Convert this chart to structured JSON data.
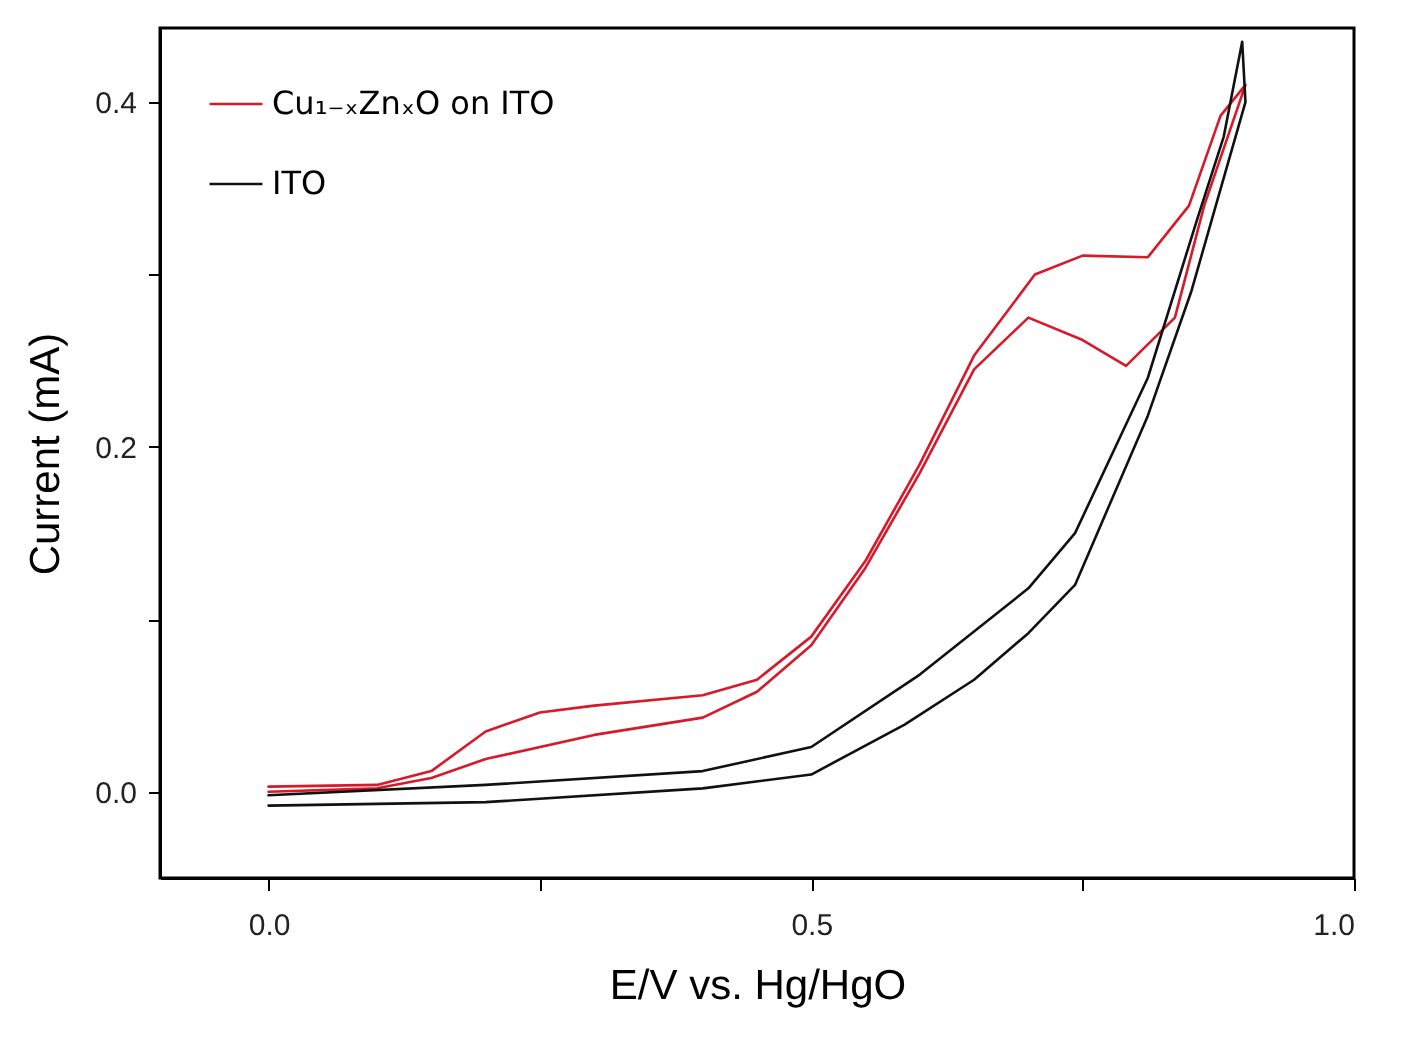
{
  "chart_data": {
    "type": "line",
    "xlabel": "E/V vs. Hg/HgO",
    "ylabel": "Current (mA)",
    "xlim": [
      -0.1,
      1.0
    ],
    "ylim": [
      -0.05,
      0.443
    ],
    "xticks": [
      {
        "value": 0,
        "label": "0.0"
      },
      {
        "value": 0.25,
        "label": null
      },
      {
        "value": 0.5,
        "label": "0.5"
      },
      {
        "value": 0.75,
        "label": null
      },
      {
        "value": 1.0,
        "label": "1.0"
      }
    ],
    "yticks": [
      {
        "value": 0,
        "label": "0.0"
      },
      {
        "value": 0.1,
        "label": null
      },
      {
        "value": 0.2,
        "label": "0.2"
      },
      {
        "value": 0.3,
        "label": null
      },
      {
        "value": 0.4,
        "label": "0.4"
      }
    ],
    "grid": false,
    "legend": "top left",
    "line_style": "solid",
    "series": [
      {
        "name": "Cu₁₋ₓZnₓO on ITO",
        "color": "#d7192a",
        "x": [
          0,
          0.1,
          0.15,
          0.2,
          0.3,
          0.4,
          0.45,
          0.5,
          0.55,
          0.6,
          0.65,
          0.7,
          0.75,
          0.79,
          0.835,
          0.862,
          0.9,
          0.877,
          0.848,
          0.81,
          0.75,
          0.706,
          0.65,
          0.6,
          0.55,
          0.5,
          0.45,
          0.4,
          0.3,
          0.25,
          0.2,
          0.15,
          0.1,
          0
        ],
        "values": [
          0.0,
          0.002,
          0.008,
          0.019,
          0.033,
          0.043,
          0.058,
          0.085,
          0.13,
          0.185,
          0.245,
          0.275,
          0.262,
          0.247,
          0.275,
          0.34,
          0.41,
          0.392,
          0.34,
          0.31,
          0.311,
          0.3,
          0.253,
          0.19,
          0.134,
          0.09,
          0.065,
          0.056,
          0.05,
          0.046,
          0.035,
          0.012,
          0.004,
          0.003
        ]
      },
      {
        "name": "ITO",
        "color": "#111111",
        "x": [
          0,
          0.2,
          0.4,
          0.5,
          0.586,
          0.65,
          0.7,
          0.743,
          0.81,
          0.85,
          0.875,
          0.9,
          0.897,
          0.88,
          0.855,
          0.81,
          0.743,
          0.7,
          0.6,
          0.5,
          0.4,
          0.2,
          0
        ],
        "values": [
          -0.008,
          -0.006,
          0.002,
          0.01,
          0.039,
          0.065,
          0.092,
          0.12,
          0.218,
          0.29,
          0.345,
          0.4,
          0.435,
          0.38,
          0.331,
          0.24,
          0.15,
          0.118,
          0.068,
          0.026,
          0.012,
          0.004,
          -0.002
        ]
      }
    ]
  }
}
